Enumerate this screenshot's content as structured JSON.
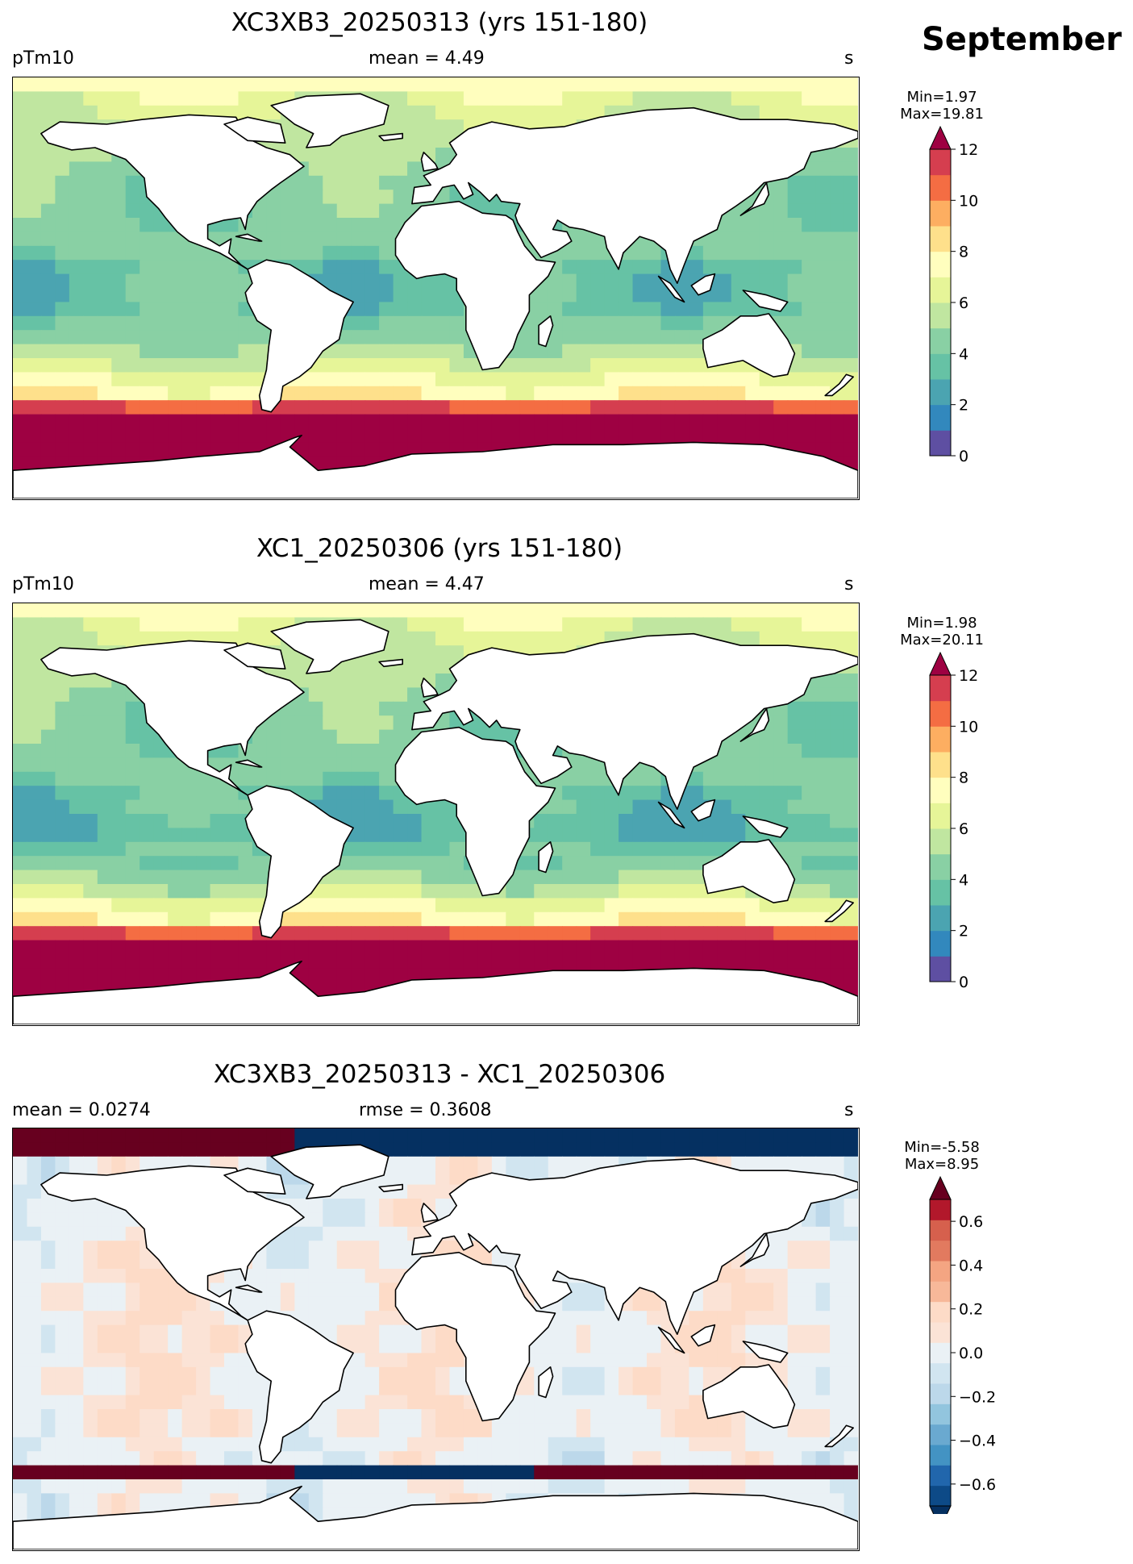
{
  "header": {
    "month": "September"
  },
  "panels": [
    {
      "title": "XC3XB3_20250313 (yrs 151-180)",
      "left_label": "pTm10",
      "center_label": "mean = 4.49",
      "right_label": "s",
      "min_text": "Min=1.97",
      "max_text": "Max=19.81",
      "colorbar": {
        "ticks": [
          "0",
          "2",
          "4",
          "6",
          "8",
          "10",
          "12"
        ],
        "levels": [
          0,
          1,
          2,
          3,
          4,
          5,
          6,
          7,
          8,
          9,
          10,
          11,
          12
        ],
        "colors": [
          "#5e4fa2",
          "#3288bd",
          "#4ba4b1",
          "#66c2a5",
          "#89d0a4",
          "#c0e6a0",
          "#e6f598",
          "#fffebe",
          "#fee08b",
          "#fdae61",
          "#f46d43",
          "#d53e4f"
        ],
        "extend_max_color": "#9e0142",
        "extend": "max"
      }
    },
    {
      "title": "XC1_20250306 (yrs 151-180)",
      "left_label": "pTm10",
      "center_label": "mean = 4.47",
      "right_label": "s",
      "min_text": "Min=1.98",
      "max_text": "Max=20.11",
      "colorbar": {
        "ticks": [
          "0",
          "2",
          "4",
          "6",
          "8",
          "10",
          "12"
        ],
        "levels": [
          0,
          1,
          2,
          3,
          4,
          5,
          6,
          7,
          8,
          9,
          10,
          11,
          12
        ],
        "colors": [
          "#5e4fa2",
          "#3288bd",
          "#4ba4b1",
          "#66c2a5",
          "#89d0a4",
          "#c0e6a0",
          "#e6f598",
          "#fffebe",
          "#fee08b",
          "#fdae61",
          "#f46d43",
          "#d53e4f"
        ],
        "extend_max_color": "#9e0142",
        "extend": "max"
      }
    },
    {
      "title": "XC3XB3_20250313 - XC1_20250306",
      "left_label": "mean = 0.0274",
      "center_label": "rmse = 0.3608",
      "right_label": "s",
      "min_text": "Min=-5.58",
      "max_text": "Max=8.95",
      "colorbar": {
        "ticks": [
          "0.6",
          "0.4",
          "0.2",
          "0.0",
          "−0.2",
          "−0.4",
          "−0.6"
        ],
        "levels": [
          -0.7,
          -0.6,
          -0.5,
          -0.4,
          -0.3,
          -0.2,
          -0.1,
          -0.05,
          0.05,
          0.1,
          0.2,
          0.3,
          0.4,
          0.5,
          0.6,
          0.7
        ],
        "colors": [
          "#0d4a87",
          "#2166ac",
          "#4393c3",
          "#6aa9d0",
          "#92c5de",
          "#bcd8ea",
          "#d1e5f0",
          "#eaf1f5",
          "#fbe3d6",
          "#fddbc7",
          "#f7b899",
          "#f4a582",
          "#e27a5f",
          "#d6604d",
          "#b2182b"
        ],
        "extend_min_color": "#053061",
        "extend_max_color": "#67001f",
        "extend": "both"
      }
    }
  ],
  "chart_data": [
    {
      "type": "heatmap",
      "title": "XC3XB3_20250313 (yrs 151-180)",
      "variable": "pTm10",
      "units": "s",
      "mean": 4.49,
      "min": 1.97,
      "max": 19.81,
      "colorbar_range": [
        0,
        12
      ]
    },
    {
      "type": "heatmap",
      "title": "XC1_20250306 (yrs 151-180)",
      "variable": "pTm10",
      "units": "s",
      "mean": 4.47,
      "min": 1.98,
      "max": 20.11,
      "colorbar_range": [
        0,
        12
      ]
    },
    {
      "type": "heatmap",
      "title": "XC3XB3_20250313 - XC1_20250306",
      "units": "s",
      "mean": 0.0274,
      "rmse": 0.3608,
      "min": -5.58,
      "max": 8.95,
      "colorbar_range": [
        -0.7,
        0.7
      ]
    }
  ]
}
